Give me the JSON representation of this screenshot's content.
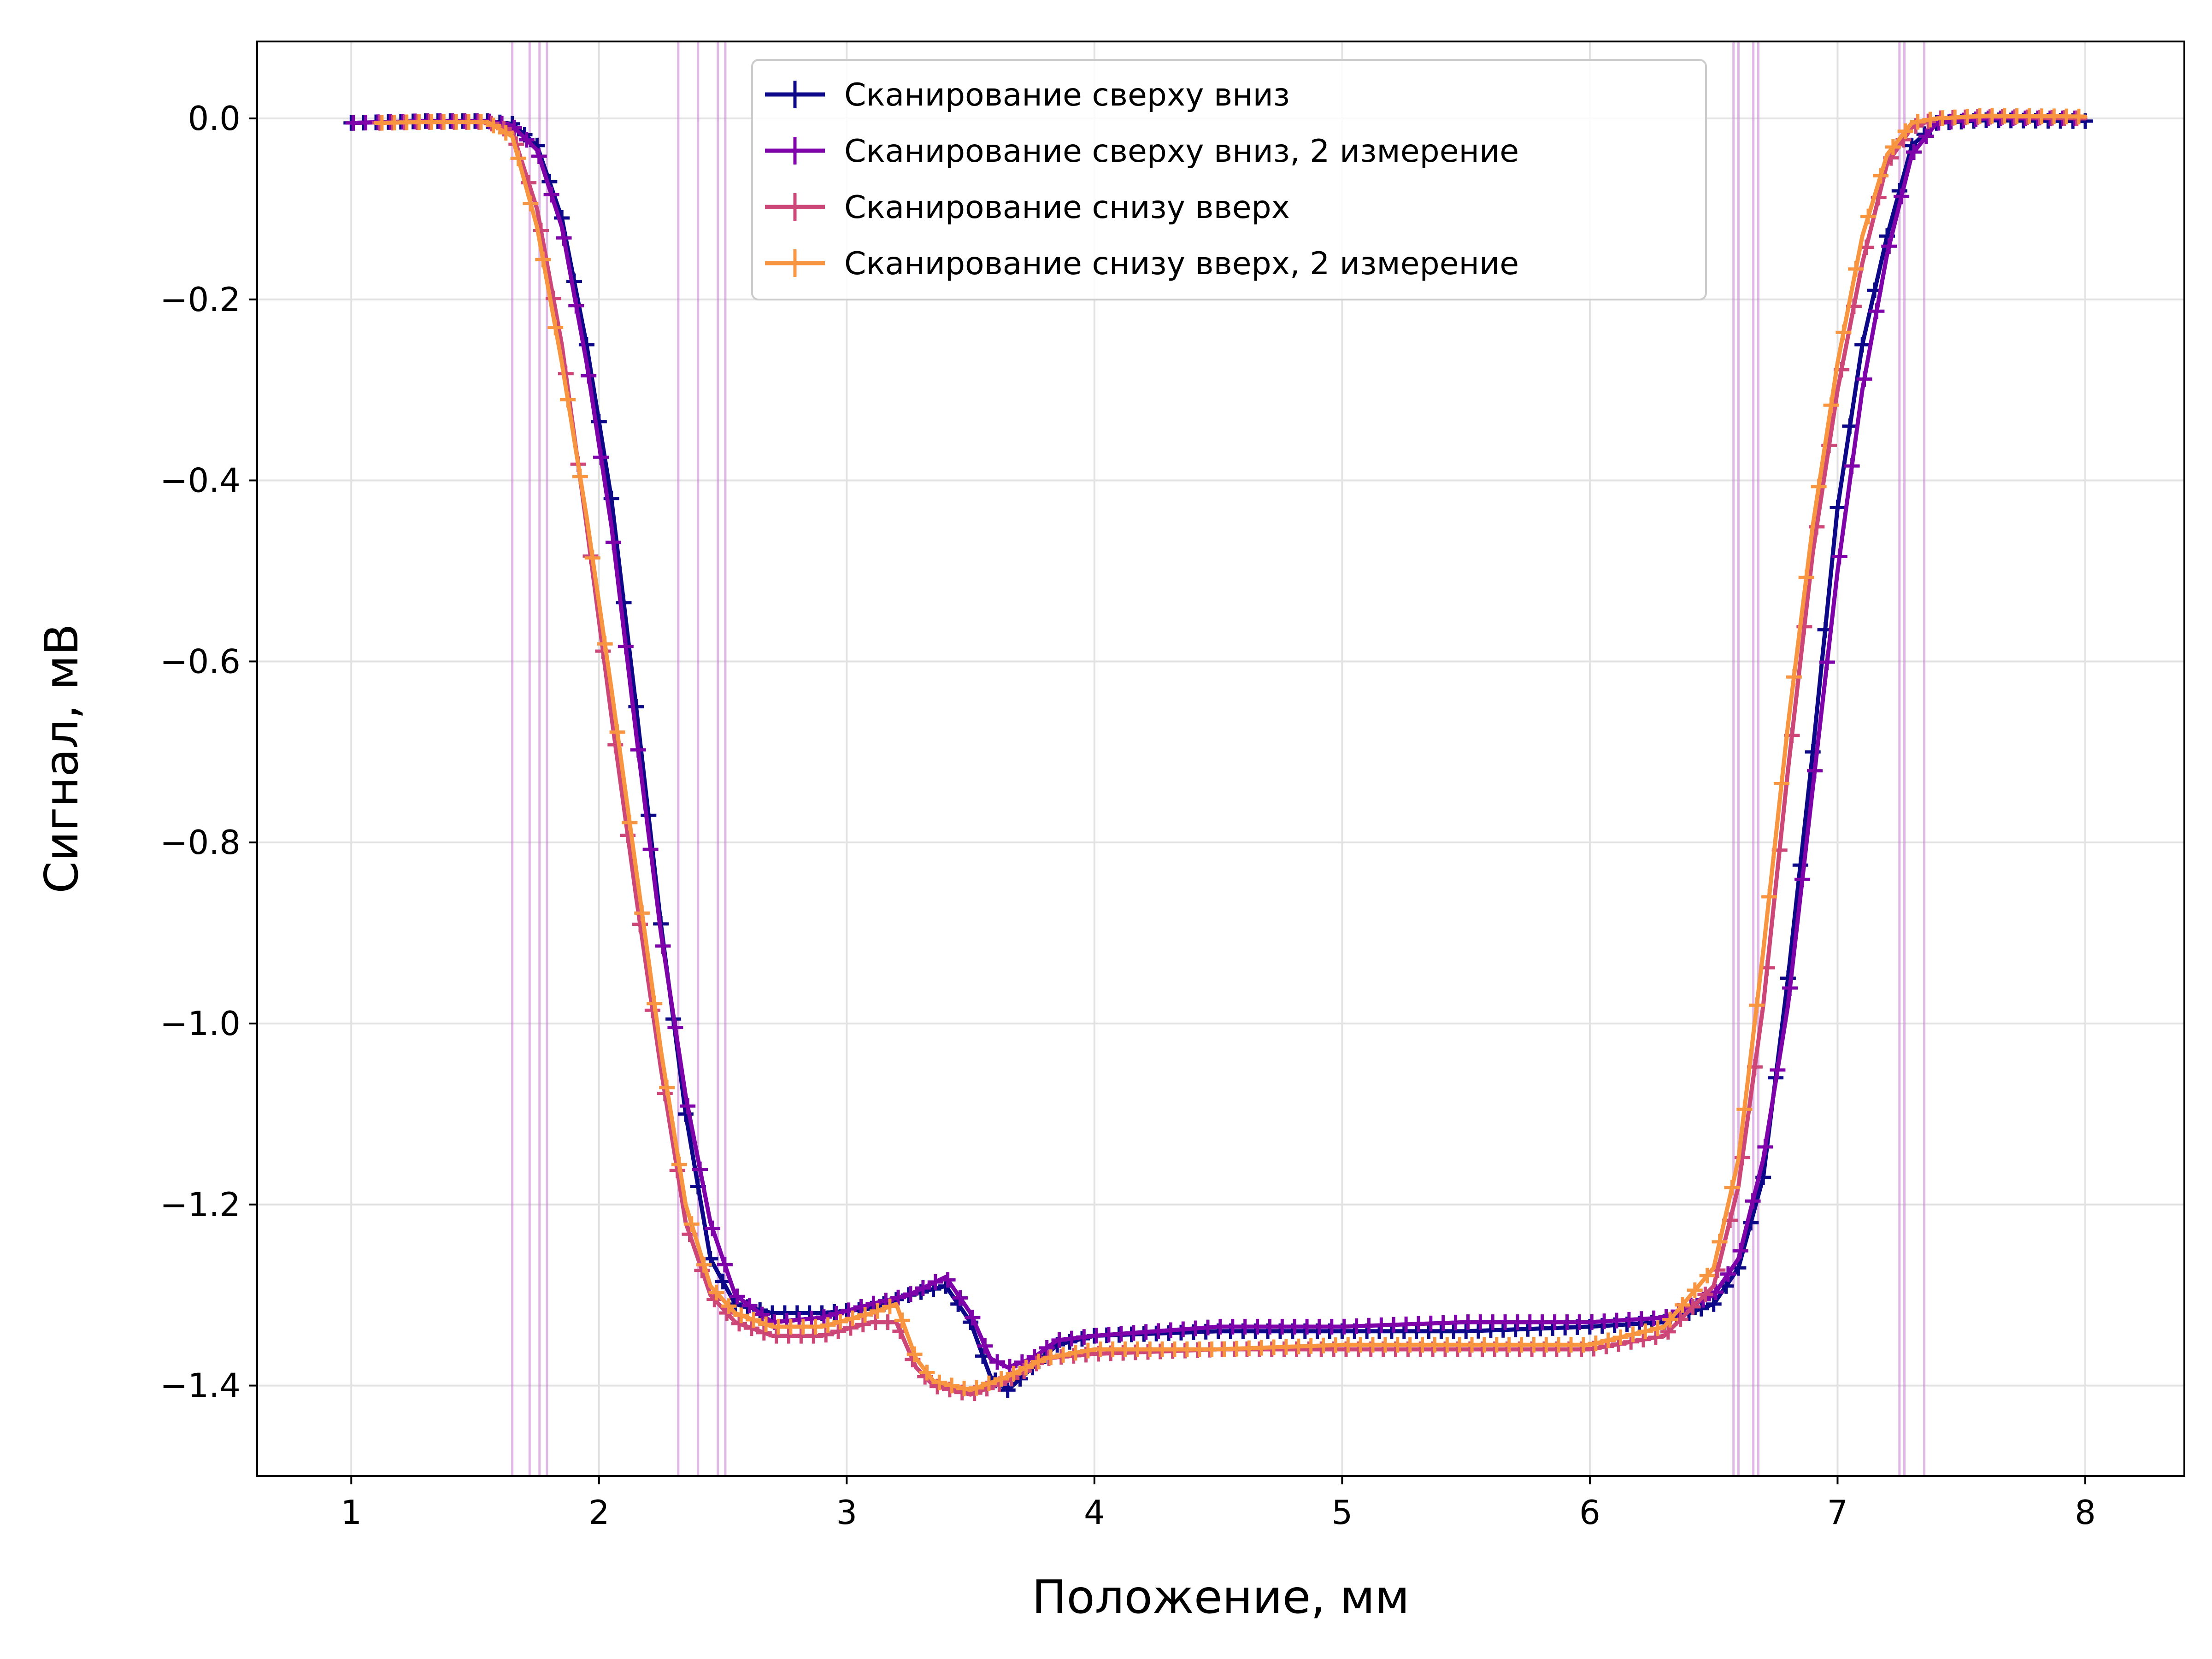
{
  "chart_data": {
    "type": "line",
    "xlabel": "Положение, мм",
    "ylabel": "Сигнал, мВ",
    "xlim": [
      0.62,
      8.4
    ],
    "ylim": [
      -1.5,
      0.085
    ],
    "x_ticks": [
      1,
      2,
      3,
      4,
      5,
      6,
      7,
      8
    ],
    "x_tick_labels": [
      "1",
      "2",
      "3",
      "4",
      "5",
      "6",
      "7",
      "8"
    ],
    "y_ticks": [
      0.0,
      -0.2,
      -0.4,
      -0.6,
      -0.8,
      -1.0,
      -1.2,
      -1.4
    ],
    "y_tick_labels": [
      "0.0",
      "−0.2",
      "−0.4",
      "−0.6",
      "−0.8",
      "−1.0",
      "−1.2",
      "−1.4"
    ],
    "grid": true,
    "legend_position": "top-center",
    "vertical_lines": [
      1.65,
      1.72,
      1.76,
      1.79,
      2.32,
      2.4,
      2.48,
      2.51,
      6.58,
      6.6,
      6.66,
      6.68,
      7.25,
      7.27,
      7.35
    ],
    "vertical_line_color": "#c77dd0",
    "series": [
      {
        "name": "Сканирование сверху вниз",
        "color": "#0d0887",
        "points": [
          [
            1.0,
            -0.005
          ],
          [
            1.3,
            -0.003
          ],
          [
            1.55,
            -0.003
          ],
          [
            1.65,
            -0.006
          ],
          [
            1.75,
            -0.03
          ],
          [
            1.85,
            -0.11
          ],
          [
            1.95,
            -0.25
          ],
          [
            2.05,
            -0.42
          ],
          [
            2.15,
            -0.65
          ],
          [
            2.25,
            -0.89
          ],
          [
            2.35,
            -1.1
          ],
          [
            2.45,
            -1.26
          ],
          [
            2.55,
            -1.31
          ],
          [
            2.7,
            -1.32
          ],
          [
            2.9,
            -1.32
          ],
          [
            3.1,
            -1.315
          ],
          [
            3.25,
            -1.3
          ],
          [
            3.4,
            -1.29
          ],
          [
            3.5,
            -1.33
          ],
          [
            3.58,
            -1.39
          ],
          [
            3.65,
            -1.405
          ],
          [
            3.75,
            -1.38
          ],
          [
            3.85,
            -1.355
          ],
          [
            4.0,
            -1.345
          ],
          [
            4.5,
            -1.34
          ],
          [
            5.0,
            -1.34
          ],
          [
            5.5,
            -1.34
          ],
          [
            6.0,
            -1.335
          ],
          [
            6.3,
            -1.33
          ],
          [
            6.5,
            -1.31
          ],
          [
            6.6,
            -1.27
          ],
          [
            6.7,
            -1.17
          ],
          [
            6.8,
            -0.95
          ],
          [
            6.9,
            -0.7
          ],
          [
            7.0,
            -0.43
          ],
          [
            7.1,
            -0.25
          ],
          [
            7.2,
            -0.13
          ],
          [
            7.3,
            -0.03
          ],
          [
            7.4,
            -0.005
          ],
          [
            7.6,
            -0.002
          ],
          [
            8.0,
            -0.003
          ]
        ]
      },
      {
        "name": "Сканирование сверху вниз, 2 измерение",
        "color": "#7e03a8",
        "points": [
          [
            1.0,
            -0.005
          ],
          [
            1.3,
            -0.003
          ],
          [
            1.55,
            -0.003
          ],
          [
            1.65,
            -0.008
          ],
          [
            1.75,
            -0.035
          ],
          [
            1.85,
            -0.12
          ],
          [
            1.95,
            -0.27
          ],
          [
            2.05,
            -0.45
          ],
          [
            2.15,
            -0.68
          ],
          [
            2.25,
            -0.9
          ],
          [
            2.35,
            -1.08
          ],
          [
            2.45,
            -1.22
          ],
          [
            2.55,
            -1.3
          ],
          [
            2.7,
            -1.33
          ],
          [
            2.9,
            -1.325
          ],
          [
            3.1,
            -1.31
          ],
          [
            3.25,
            -1.3
          ],
          [
            3.4,
            -1.28
          ],
          [
            3.5,
            -1.32
          ],
          [
            3.58,
            -1.37
          ],
          [
            3.65,
            -1.38
          ],
          [
            3.75,
            -1.37
          ],
          [
            3.85,
            -1.35
          ],
          [
            4.0,
            -1.345
          ],
          [
            4.5,
            -1.335
          ],
          [
            5.0,
            -1.335
          ],
          [
            5.5,
            -1.33
          ],
          [
            6.0,
            -1.33
          ],
          [
            6.3,
            -1.325
          ],
          [
            6.5,
            -1.3
          ],
          [
            6.6,
            -1.26
          ],
          [
            6.7,
            -1.15
          ],
          [
            6.8,
            -0.98
          ],
          [
            6.9,
            -0.74
          ],
          [
            7.0,
            -0.5
          ],
          [
            7.1,
            -0.3
          ],
          [
            7.2,
            -0.15
          ],
          [
            7.3,
            -0.04
          ],
          [
            7.4,
            -0.005
          ],
          [
            7.6,
            0.0
          ],
          [
            8.0,
            0.0
          ]
        ]
      },
      {
        "name": "Сканирование снизу вверх",
        "color": "#cc4778",
        "points": [
          [
            1.1,
            -0.005
          ],
          [
            1.3,
            -0.004
          ],
          [
            1.55,
            -0.004
          ],
          [
            1.65,
            -0.015
          ],
          [
            1.75,
            -0.1
          ],
          [
            1.85,
            -0.25
          ],
          [
            1.95,
            -0.45
          ],
          [
            2.05,
            -0.66
          ],
          [
            2.15,
            -0.86
          ],
          [
            2.25,
            -1.05
          ],
          [
            2.35,
            -1.22
          ],
          [
            2.45,
            -1.3
          ],
          [
            2.55,
            -1.33
          ],
          [
            2.7,
            -1.345
          ],
          [
            2.9,
            -1.345
          ],
          [
            3.1,
            -1.33
          ],
          [
            3.2,
            -1.33
          ],
          [
            3.28,
            -1.38
          ],
          [
            3.35,
            -1.4
          ],
          [
            3.5,
            -1.41
          ],
          [
            3.65,
            -1.395
          ],
          [
            3.8,
            -1.37
          ],
          [
            4.0,
            -1.365
          ],
          [
            4.5,
            -1.36
          ],
          [
            5.0,
            -1.36
          ],
          [
            5.5,
            -1.36
          ],
          [
            6.0,
            -1.36
          ],
          [
            6.3,
            -1.345
          ],
          [
            6.5,
            -1.29
          ],
          [
            6.6,
            -1.18
          ],
          [
            6.7,
            -0.98
          ],
          [
            6.8,
            -0.72
          ],
          [
            6.9,
            -0.48
          ],
          [
            7.0,
            -0.3
          ],
          [
            7.1,
            -0.16
          ],
          [
            7.2,
            -0.05
          ],
          [
            7.3,
            -0.01
          ],
          [
            7.4,
            0.0
          ],
          [
            7.6,
            0.002
          ],
          [
            8.0,
            0.0
          ]
        ]
      },
      {
        "name": "Сканирование снизу вверх, 2 измерение",
        "color": "#f89540",
        "points": [
          [
            1.1,
            -0.005
          ],
          [
            1.3,
            -0.004
          ],
          [
            1.55,
            -0.004
          ],
          [
            1.65,
            -0.02
          ],
          [
            1.75,
            -0.12
          ],
          [
            1.85,
            -0.27
          ],
          [
            1.95,
            -0.44
          ],
          [
            2.05,
            -0.63
          ],
          [
            2.15,
            -0.83
          ],
          [
            2.25,
            -1.03
          ],
          [
            2.35,
            -1.2
          ],
          [
            2.45,
            -1.29
          ],
          [
            2.55,
            -1.32
          ],
          [
            2.7,
            -1.335
          ],
          [
            2.9,
            -1.335
          ],
          [
            3.1,
            -1.32
          ],
          [
            3.2,
            -1.31
          ],
          [
            3.28,
            -1.37
          ],
          [
            3.35,
            -1.395
          ],
          [
            3.5,
            -1.405
          ],
          [
            3.65,
            -1.39
          ],
          [
            3.8,
            -1.37
          ],
          [
            4.0,
            -1.36
          ],
          [
            4.5,
            -1.36
          ],
          [
            5.0,
            -1.355
          ],
          [
            5.5,
            -1.355
          ],
          [
            6.0,
            -1.355
          ],
          [
            6.3,
            -1.335
          ],
          [
            6.5,
            -1.27
          ],
          [
            6.6,
            -1.15
          ],
          [
            6.7,
            -0.92
          ],
          [
            6.8,
            -0.67
          ],
          [
            6.9,
            -0.45
          ],
          [
            7.0,
            -0.27
          ],
          [
            7.1,
            -0.13
          ],
          [
            7.2,
            -0.04
          ],
          [
            7.3,
            -0.005
          ],
          [
            7.4,
            0.0
          ],
          [
            7.6,
            0.003
          ],
          [
            8.0,
            0.002
          ]
        ]
      }
    ]
  }
}
